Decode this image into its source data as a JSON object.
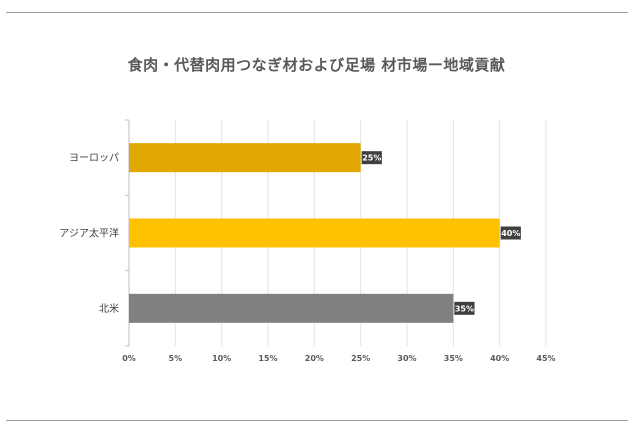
{
  "chart_data": {
    "type": "bar",
    "orientation": "horizontal",
    "title": "食肉・代替肉用つなぎ材および足場 材市場ー地域貢献",
    "categories": [
      "ヨーロッパ",
      "アジア太平洋",
      "北米"
    ],
    "values": [
      25,
      40,
      35
    ],
    "data_labels": [
      "25%",
      "40%",
      "35%"
    ],
    "colors": [
      "#E0A800",
      "#FFC000",
      "#808080"
    ],
    "xlim": [
      0,
      45
    ],
    "x_ticks": [
      0,
      5,
      10,
      15,
      20,
      25,
      30,
      35,
      40,
      45
    ],
    "x_tick_labels": [
      "0%",
      "5%",
      "10%",
      "15%",
      "20%",
      "25%",
      "30%",
      "35%",
      "40%",
      "45%"
    ],
    "grid": true,
    "legend": "none"
  }
}
